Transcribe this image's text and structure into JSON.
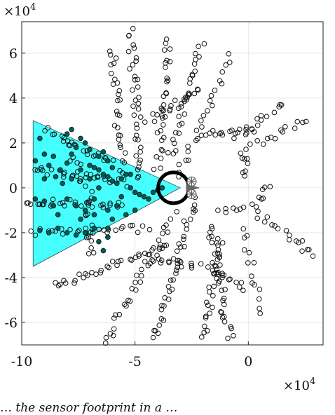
{
  "caption": "… the sensor footprint in a … ",
  "chart_data": {
    "type": "scatter",
    "xlim": [
      -100000,
      33000
    ],
    "ylim": [
      -70000,
      74000
    ],
    "x_ticks": [
      -100000,
      -50000,
      0
    ],
    "y_ticks": [
      -60000,
      -40000,
      -20000,
      0,
      20000,
      40000,
      60000
    ],
    "x_tick_labels": [
      "-10",
      "-5",
      "0"
    ],
    "y_tick_labels": [
      "-6",
      "-4",
      "-2",
      "0",
      "2",
      "4",
      "6"
    ],
    "x_exponent": "×10",
    "y_exponent": "×10",
    "exponent_power": "4",
    "grid": true,
    "sensor_region": {
      "vertices": [
        [
          -95000,
          30000
        ],
        [
          -30000,
          0
        ],
        [
          -95000,
          -35000
        ]
      ],
      "fill": "#33ffff"
    },
    "sensor_origin": [
      -33000,
      0
    ],
    "markers_origin": [
      -25000,
      0
    ],
    "marker_color": "#111111",
    "detected_color": "#0b5a52",
    "branches": [
      {
        "x0": -55000,
        "y0": 2000,
        "x1": -60000,
        "y1": 62000,
        "n": 30
      },
      {
        "x0": -47000,
        "y0": 4000,
        "x1": -52000,
        "y1": 70000,
        "n": 36
      },
      {
        "x0": -40000,
        "y0": 8000,
        "x1": -35000,
        "y1": 66000,
        "n": 30
      },
      {
        "x0": -34000,
        "y0": 14000,
        "x1": -21000,
        "y1": 64000,
        "n": 28
      },
      {
        "x0": -31000,
        "y0": 4000,
        "x1": -8000,
        "y1": 58000,
        "n": 24
      },
      {
        "x0": -44000,
        "y0": 30000,
        "x1": -22000,
        "y1": 43000,
        "n": 18
      },
      {
        "x0": -22000,
        "y0": 24000,
        "x1": 3000,
        "y1": 25000,
        "n": 16
      },
      {
        "x0": -5000,
        "y0": 22000,
        "x1": 15000,
        "y1": 38000,
        "n": 14
      },
      {
        "x0": 0,
        "y0": 18000,
        "x1": 25000,
        "y1": 30000,
        "n": 14
      },
      {
        "x0": -3000,
        "y0": 16000,
        "x1": 0,
        "y1": 5000,
        "n": 8
      },
      {
        "x0": -24000,
        "y0": -5000,
        "x1": -42000,
        "y1": -70000,
        "n": 38
      },
      {
        "x0": -33000,
        "y0": -12000,
        "x1": -63000,
        "y1": -69000,
        "n": 32
      },
      {
        "x0": -17000,
        "y0": -16000,
        "x1": -8000,
        "y1": -68000,
        "n": 30
      },
      {
        "x0": -12000,
        "y0": -22000,
        "x1": -20000,
        "y1": -66000,
        "n": 26
      },
      {
        "x0": -45000,
        "y0": -33000,
        "x1": -22000,
        "y1": -35000,
        "n": 16
      },
      {
        "x0": -18000,
        "y0": -35000,
        "x1": -2000,
        "y1": -45000,
        "n": 14
      },
      {
        "x0": -2000,
        "y0": -18000,
        "x1": 5000,
        "y1": -55000,
        "n": 14
      },
      {
        "x0": -12000,
        "y0": -10000,
        "x1": 0,
        "y1": -7000,
        "n": 8
      },
      {
        "x0": 2000,
        "y0": -10000,
        "x1": 30000,
        "y1": -30000,
        "n": 18
      },
      {
        "x0": 4000,
        "y0": -5000,
        "x1": 10000,
        "y1": 0,
        "n": 6
      },
      {
        "x0": -35000,
        "y0": -25000,
        "x1": -85000,
        "y1": -44000,
        "n": 34
      },
      {
        "x0": -45000,
        "y0": -18000,
        "x1": -95000,
        "y1": -20000,
        "n": 26
      },
      {
        "x0": -55000,
        "y0": -8000,
        "x1": -100000,
        "y1": -6000,
        "n": 30
      },
      {
        "x0": -58000,
        "y0": 3000,
        "x1": -95000,
        "y1": 8000,
        "n": 26
      },
      {
        "x0": -60000,
        "y0": 11000,
        "x1": -90000,
        "y1": 25000,
        "n": 20
      },
      {
        "x0": -70000,
        "y0": -3000,
        "x1": -70000,
        "y1": -30000,
        "n": 16
      },
      {
        "x0": -72000,
        "y0": 0,
        "x1": -80000,
        "y1": 21000,
        "n": 12
      }
    ],
    "filled_points": [
      [
        -92000,
        22000
      ],
      [
        -90000,
        15000
      ],
      [
        -88000,
        10000
      ],
      [
        -85000,
        5000
      ],
      [
        -83000,
        8000
      ],
      [
        -80000,
        11000
      ],
      [
        -78000,
        15000
      ],
      [
        -76000,
        18000
      ],
      [
        -74000,
        22000
      ],
      [
        -72000,
        20000
      ],
      [
        -70000,
        10000
      ],
      [
        -68000,
        9000
      ],
      [
        -66000,
        8000
      ],
      [
        -64000,
        6000
      ],
      [
        -62000,
        5000
      ],
      [
        -60000,
        3000
      ],
      [
        -58000,
        2000
      ],
      [
        -56000,
        4000
      ],
      [
        -54000,
        6000
      ],
      [
        -52000,
        0
      ],
      [
        -50000,
        -2000
      ],
      [
        -48000,
        -3000
      ],
      [
        -46000,
        -4000
      ],
      [
        -44000,
        -5000
      ],
      [
        -42000,
        -2000
      ],
      [
        -40000,
        -1000
      ],
      [
        -38000,
        0
      ],
      [
        -68000,
        -5000
      ],
      [
        -68000,
        -12000
      ],
      [
        -68000,
        -18000
      ],
      [
        -66000,
        -24000
      ],
      [
        -64000,
        -28000
      ],
      [
        -62000,
        -10000
      ],
      [
        -60000,
        -14000
      ],
      [
        -62000,
        -18000
      ],
      [
        -62000,
        -22000
      ],
      [
        -80000,
        -5000
      ],
      [
        -76000,
        -8000
      ],
      [
        -72000,
        -10000
      ],
      [
        -86000,
        -8000
      ],
      [
        -90000,
        -6000
      ],
      [
        -94000,
        -5000
      ],
      [
        -84000,
        -18000
      ],
      [
        -80000,
        -20000
      ],
      [
        -76000,
        -21000
      ],
      [
        -72000,
        -20000
      ],
      [
        -88000,
        -20000
      ],
      [
        -92000,
        -19000
      ],
      [
        -58000,
        -8000
      ],
      [
        -54000,
        -12000
      ],
      [
        -50000,
        -10000
      ],
      [
        -64000,
        16000
      ],
      [
        -62000,
        12000
      ],
      [
        -66000,
        14000
      ],
      [
        -70000,
        17000
      ],
      [
        -74000,
        8000
      ],
      [
        -78000,
        4000
      ],
      [
        -82000,
        2000
      ],
      [
        -70000,
        4000
      ],
      [
        -66000,
        0
      ],
      [
        -86000,
        14000
      ],
      [
        -80000,
        24000
      ],
      [
        -78000,
        26000
      ],
      [
        -94000,
        12000
      ],
      [
        -90000,
        4000
      ],
      [
        -56000,
        -4000
      ],
      [
        -52000,
        6000
      ],
      [
        -60000,
        9000
      ],
      [
        -74000,
        -14000
      ],
      [
        -84000,
        -12000
      ]
    ]
  }
}
